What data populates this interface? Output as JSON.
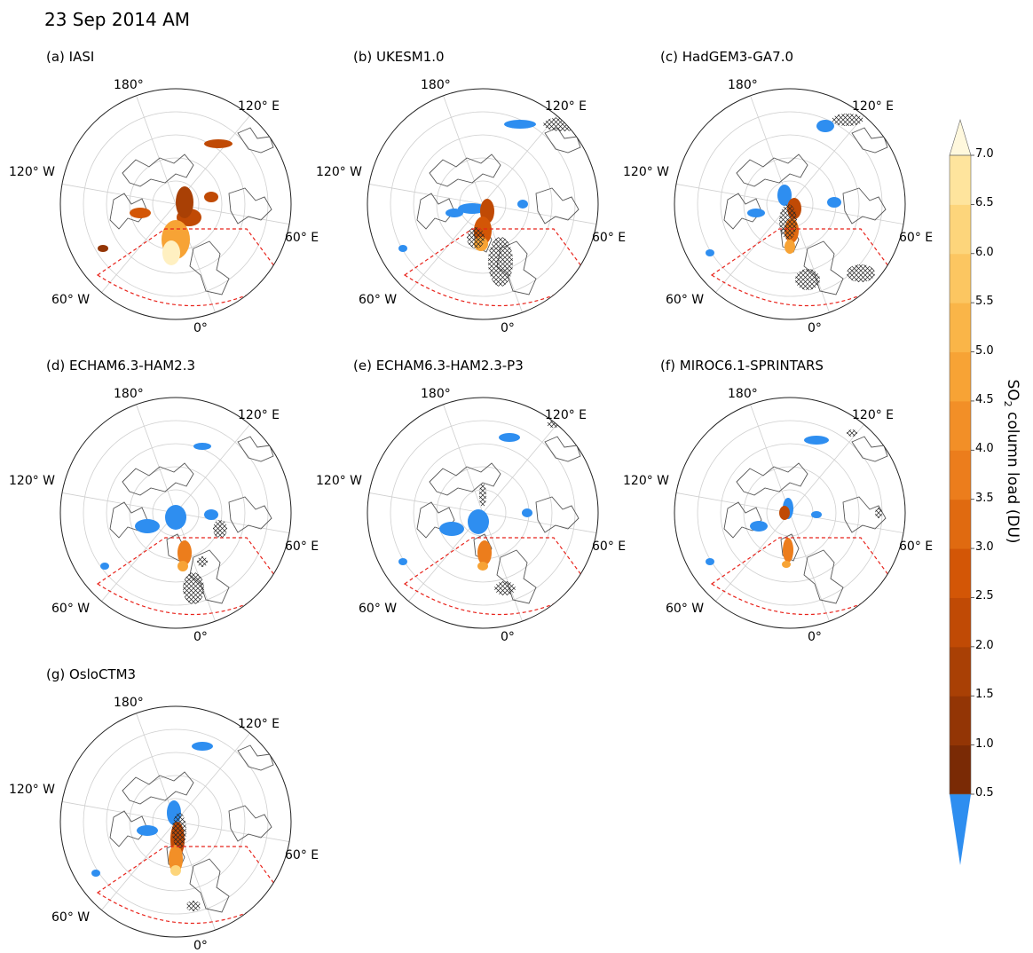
{
  "figure": {
    "title": "23 Sep 2014 AM",
    "lon_labels": [
      "180°",
      "120° E",
      "60° E",
      "0°",
      "60° W",
      "120° W"
    ],
    "panels": [
      {
        "id": "a",
        "title": "(a) IASI",
        "so2_cmap": "orange",
        "mask_blue": false,
        "hatch": false
      },
      {
        "id": "b",
        "title": "(b) UKESM1.0",
        "so2_cmap": "orange",
        "mask_blue": true,
        "hatch": true
      },
      {
        "id": "c",
        "title": "(c) HadGEM3-GA7.0",
        "so2_cmap": "orange",
        "mask_blue": true,
        "hatch": true
      },
      {
        "id": "d",
        "title": "(d) ECHAM6.3-HAM2.3",
        "so2_cmap": "orange",
        "mask_blue": true,
        "hatch": true
      },
      {
        "id": "e",
        "title": "(e) ECHAM6.3-HAM2.3-P3",
        "so2_cmap": "orange",
        "mask_blue": true,
        "hatch": true
      },
      {
        "id": "f",
        "title": "(f) MIROC6.1-SPRINTARS",
        "so2_cmap": "orange",
        "mask_blue": true,
        "hatch": true
      },
      {
        "id": "g",
        "title": "(g) OsloCTM3",
        "so2_cmap": "orange",
        "mask_blue": true,
        "hatch": true
      }
    ],
    "colorbar": {
      "label": "SO",
      "label_sub": "2",
      "label_rest": " column load (DU)",
      "ticks": [
        "0.5",
        "1.0",
        "1.5",
        "2.0",
        "2.5",
        "3.0",
        "3.5",
        "4.0",
        "4.5",
        "5.0",
        "5.5",
        "6.0",
        "6.5",
        "7.0"
      ],
      "under_color": "#2e8ef0",
      "colors": [
        "#7a2a05",
        "#933505",
        "#a94005",
        "#c04a05",
        "#d35606",
        "#e06a10",
        "#ec7d1c",
        "#f28f27",
        "#f7a335",
        "#fab548",
        "#fcc661",
        "#fdd57b",
        "#fee49d",
        "#fff0c1",
        "#fff8dd"
      ]
    }
  }
}
